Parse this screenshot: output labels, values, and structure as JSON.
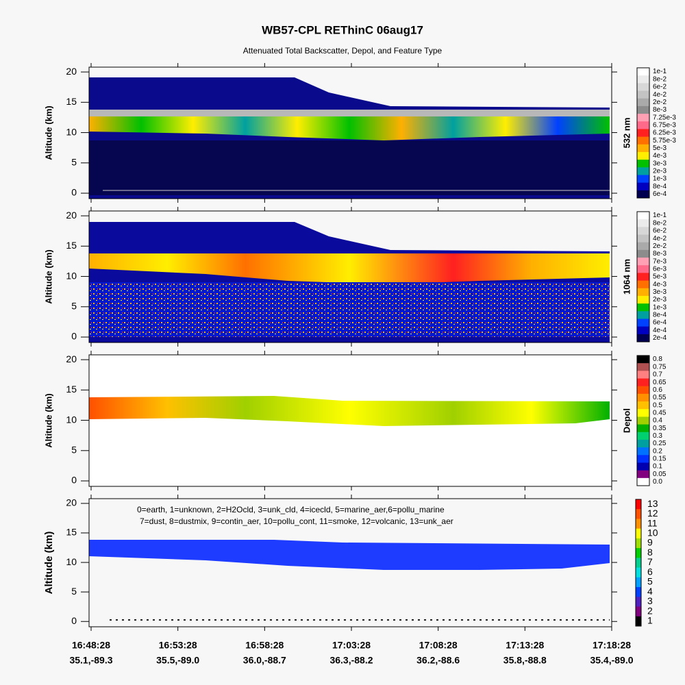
{
  "title": "WB57-CPL REThinC 06aug17",
  "subtitle": "Attenuated Total Backscatter, Depol, and Feature Type",
  "x_ticks": [
    {
      "time": "16:48:28",
      "location": "35.1,-89.3"
    },
    {
      "time": "16:53:28",
      "location": "35.5,-89.0"
    },
    {
      "time": "16:58:28",
      "location": "36.0,-88.7"
    },
    {
      "time": "17:03:28",
      "location": "36.3,-88.2"
    },
    {
      "time": "17:08:28",
      "location": "36.2,-88.6"
    },
    {
      "time": "17:13:28",
      "location": "35.8,-88.8"
    },
    {
      "time": "17:18:28",
      "location": "35.4,-89.0"
    }
  ],
  "chart_data": [
    {
      "type": "heatmap",
      "ylabel": "Altitude (km)",
      "ylim": [
        -0.9,
        20.8
      ],
      "yticks": [
        0,
        5,
        10,
        15,
        20
      ],
      "colorbar": {
        "label": "532 nm",
        "levels": [
          {
            "value": 0.1,
            "label": "1e-1",
            "color": "#ffffff"
          },
          {
            "value": 0.08,
            "label": "8e-2",
            "color": "#ebebeb"
          },
          {
            "value": 0.06,
            "label": "6e-2",
            "color": "#d7d7d7"
          },
          {
            "value": 0.04,
            "label": "4e-2",
            "color": "#c3c3c3"
          },
          {
            "value": 0.02,
            "label": "2e-2",
            "color": "#aaaaaa"
          },
          {
            "value": 0.008,
            "label": "8e-3",
            "color": "#8c8c8c"
          },
          {
            "value": 0.00725,
            "label": "7.25e-3",
            "color": "#ffa0b4"
          },
          {
            "value": 0.00675,
            "label": "6.75e-3",
            "color": "#ff6a8a"
          },
          {
            "value": 0.00625,
            "label": "6.25e-3",
            "color": "#ff2020"
          },
          {
            "value": 0.00575,
            "label": "5.75e-3",
            "color": "#ff7000"
          },
          {
            "value": 0.005,
            "label": "5e-3",
            "color": "#ffb000"
          },
          {
            "value": 0.004,
            "label": "4e-3",
            "color": "#ffee00"
          },
          {
            "value": 0.003,
            "label": "3e-3",
            "color": "#00c000"
          },
          {
            "value": 0.002,
            "label": "2e-3",
            "color": "#00a0a0"
          },
          {
            "value": 0.001,
            "label": "1e-3",
            "color": "#0040ff"
          },
          {
            "value": 0.0008,
            "label": "8e-4",
            "color": "#0000c0"
          },
          {
            "value": 0.0006,
            "label": "6e-4",
            "color": "#000050"
          }
        ]
      }
    },
    {
      "type": "heatmap",
      "ylabel": "Altitude (km)",
      "ylim": [
        -0.9,
        20.8
      ],
      "yticks": [
        0,
        5,
        10,
        15,
        20
      ],
      "colorbar": {
        "label": "1064 nm",
        "levels": [
          {
            "value": 0.1,
            "label": "1e-1",
            "color": "#ffffff"
          },
          {
            "value": 0.08,
            "label": "8e-2",
            "color": "#ebebeb"
          },
          {
            "value": 0.06,
            "label": "6e-2",
            "color": "#d7d7d7"
          },
          {
            "value": 0.04,
            "label": "4e-2",
            "color": "#c3c3c3"
          },
          {
            "value": 0.02,
            "label": "2e-2",
            "color": "#aaaaaa"
          },
          {
            "value": 0.008,
            "label": "8e-3",
            "color": "#8c8c8c"
          },
          {
            "value": 0.007,
            "label": "7e-3",
            "color": "#ffa0b4"
          },
          {
            "value": 0.006,
            "label": "6e-3",
            "color": "#ff6a8a"
          },
          {
            "value": 0.005,
            "label": "5e-3",
            "color": "#ff2020"
          },
          {
            "value": 0.004,
            "label": "4e-3",
            "color": "#ff7000"
          },
          {
            "value": 0.003,
            "label": "3e-3",
            "color": "#ffb000"
          },
          {
            "value": 0.002,
            "label": "2e-3",
            "color": "#ffee00"
          },
          {
            "value": 0.001,
            "label": "1e-3",
            "color": "#00c000"
          },
          {
            "value": 0.0008,
            "label": "8e-4",
            "color": "#00a0a0"
          },
          {
            "value": 0.0006,
            "label": "6e-4",
            "color": "#0040ff"
          },
          {
            "value": 0.0004,
            "label": "4e-4",
            "color": "#0000c0"
          },
          {
            "value": 0.0002,
            "label": "2e-4",
            "color": "#000050"
          }
        ]
      }
    },
    {
      "type": "heatmap",
      "ylabel": "Altitude (km)",
      "ylim": [
        -0.9,
        20.8
      ],
      "yticks": [
        0,
        5,
        10,
        15,
        20
      ],
      "colorbar": {
        "label": "Depol",
        "levels": [
          {
            "value": 0.8,
            "label": "0.8",
            "color": "#000000"
          },
          {
            "value": 0.75,
            "label": "0.75",
            "color": "#b05050"
          },
          {
            "value": 0.7,
            "label": "0.7",
            "color": "#ff8080"
          },
          {
            "value": 0.65,
            "label": "0.65",
            "color": "#ff2020"
          },
          {
            "value": 0.6,
            "label": "0.6",
            "color": "#ff5000"
          },
          {
            "value": 0.55,
            "label": "0.55",
            "color": "#ff9000"
          },
          {
            "value": 0.5,
            "label": "0.5",
            "color": "#ffc000"
          },
          {
            "value": 0.45,
            "label": "0.45",
            "color": "#ffff00"
          },
          {
            "value": 0.4,
            "label": "0.4",
            "color": "#a0d000"
          },
          {
            "value": 0.35,
            "label": "0.35",
            "color": "#00b000"
          },
          {
            "value": 0.3,
            "label": "0.3",
            "color": "#00d070"
          },
          {
            "value": 0.25,
            "label": "0.25",
            "color": "#00a0a0"
          },
          {
            "value": 0.2,
            "label": "0.2",
            "color": "#0070ff"
          },
          {
            "value": 0.15,
            "label": "0.15",
            "color": "#0030ff"
          },
          {
            "value": 0.1,
            "label": "0.1",
            "color": "#0000b0"
          },
          {
            "value": 0.05,
            "label": "0.05",
            "color": "#800080"
          },
          {
            "value": 0,
            "label": "0.0",
            "color": "#ffffff"
          }
        ]
      }
    },
    {
      "type": "heatmap",
      "ylabel": "Altitude (km)",
      "ylim": [
        -0.9,
        20.8
      ],
      "yticks": [
        0,
        5,
        10,
        15,
        20
      ],
      "legend_text": [
        "0=earth, 1=unknown, 2=H2Ocld, 3=unk_cld, 4=icecld, 5=marine_aer,6=pollu_marine",
        "7=dust, 8=dustmix, 9=contin_aer, 10=pollu_cont, 11=smoke, 12=volcanic, 13=unk_aer"
      ],
      "colorbar": {
        "levels": [
          {
            "value": 13,
            "color": "#ff0000"
          },
          {
            "value": 12,
            "color": "#ff5000"
          },
          {
            "value": 11,
            "color": "#ff9000"
          },
          {
            "value": 10,
            "color": "#ffff00"
          },
          {
            "value": 9,
            "color": "#a0e000"
          },
          {
            "value": 8,
            "color": "#00d000"
          },
          {
            "value": 7,
            "color": "#00d090"
          },
          {
            "value": 6,
            "color": "#00e0e0"
          },
          {
            "value": 5,
            "color": "#00a0ff"
          },
          {
            "value": 4,
            "color": "#0040ff"
          },
          {
            "value": 3,
            "color": "#5020c0"
          },
          {
            "value": 2,
            "color": "#800080"
          },
          {
            "value": 1,
            "color": "#000000"
          }
        ]
      }
    }
  ]
}
